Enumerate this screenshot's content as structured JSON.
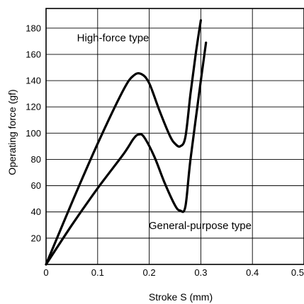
{
  "chart_data": {
    "type": "line",
    "title": "",
    "xlabel": "Stroke S (mm)",
    "ylabel": "Operating force (gf)",
    "xlim": [
      0,
      0.5
    ],
    "ylim": [
      0,
      195
    ],
    "x_ticks": [
      0,
      0.1,
      0.2,
      0.3,
      0.4,
      0.5
    ],
    "x_tick_labels": [
      "0",
      "0.1",
      "0.2",
      "0.3",
      "0.4",
      "0.5"
    ],
    "y_ticks": [
      20,
      40,
      60,
      80,
      100,
      120,
      140,
      160,
      180
    ],
    "y_tick_labels": [
      "20",
      "40",
      "60",
      "80",
      "100",
      "120",
      "140",
      "160",
      "180"
    ],
    "grid": true,
    "legend": "none",
    "series": [
      {
        "values": [
          [
            0,
            0
          ],
          [
            0.05,
            47
          ],
          [
            0.1,
            92
          ],
          [
            0.15,
            133
          ],
          [
            0.17,
            144
          ],
          [
            0.185,
            145
          ],
          [
            0.2,
            138
          ],
          [
            0.22,
            117
          ],
          [
            0.24,
            98
          ],
          [
            0.25,
            92
          ],
          [
            0.26,
            90
          ],
          [
            0.27,
            97
          ],
          [
            0.28,
            130
          ],
          [
            0.29,
            160
          ],
          [
            0.3,
            186
          ]
        ]
      },
      {
        "values": [
          [
            0,
            0
          ],
          [
            0.05,
            30
          ],
          [
            0.1,
            58
          ],
          [
            0.15,
            84
          ],
          [
            0.17,
            96
          ],
          [
            0.18,
            99
          ],
          [
            0.19,
            97
          ],
          [
            0.21,
            82
          ],
          [
            0.23,
            62
          ],
          [
            0.25,
            45
          ],
          [
            0.26,
            41
          ],
          [
            0.27,
            44
          ],
          [
            0.28,
            80
          ],
          [
            0.3,
            140
          ],
          [
            0.31,
            169
          ]
        ]
      }
    ],
    "annotations": [
      {
        "text": "High-force type",
        "x": 0.06,
        "y": 170
      },
      {
        "text": "General-purpose type",
        "x": 0.199,
        "y": 27
      }
    ]
  }
}
